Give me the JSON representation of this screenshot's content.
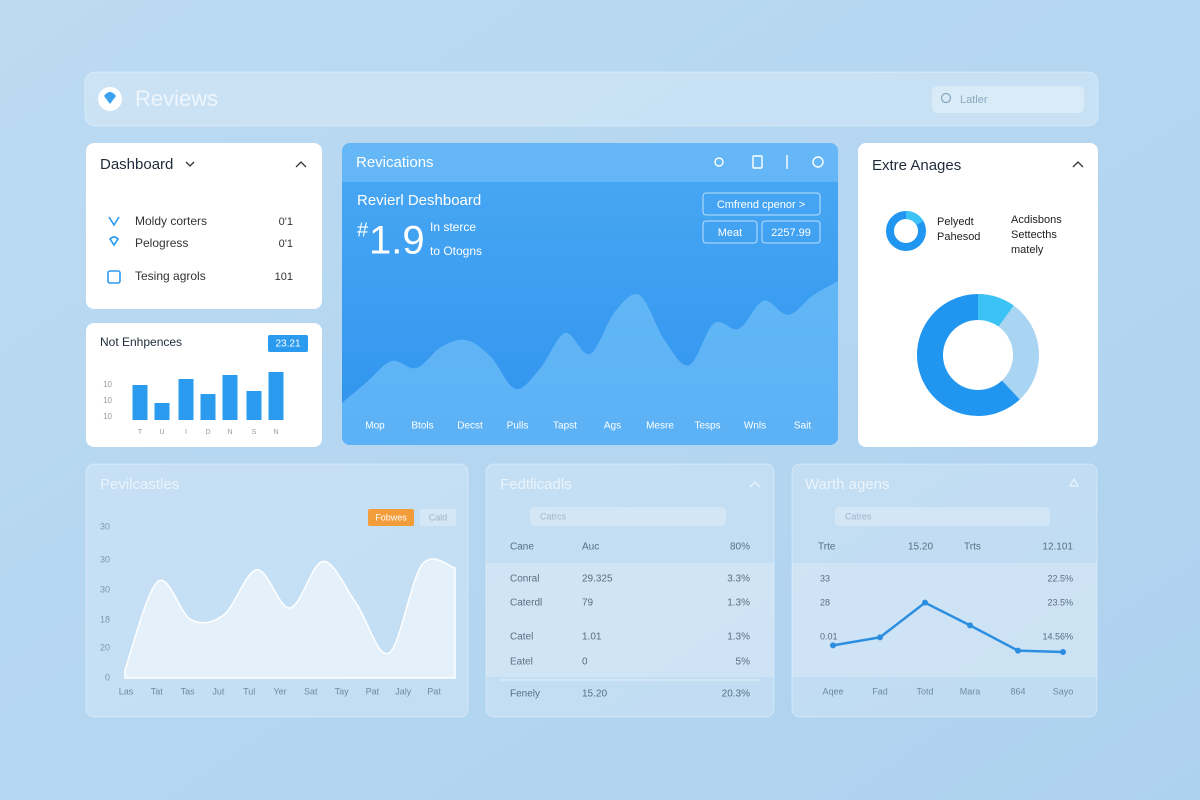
{
  "header": {
    "title": "Reviews",
    "search": "Latler"
  },
  "dashboard": {
    "title": "Dashboard",
    "items": [
      {
        "label": "Moldy corters",
        "value": "0'1"
      },
      {
        "label": "Pelogress",
        "value": "0'1"
      },
      {
        "label": "Tesing agrols",
        "value": "101"
      }
    ]
  },
  "table": {
    "title": "Fedtlicadls",
    "search": "Catrcs",
    "header": [
      "Cane",
      "Auc",
      "80%"
    ],
    "rows": [
      [
        "Conral",
        "29.325",
        "3.3%"
      ],
      [
        "Caterdl",
        "79",
        "1.3%"
      ],
      [
        "Catel",
        "1.01",
        "1.3%"
      ],
      [
        "Eatel",
        "0",
        "5%"
      ],
      [
        "Fenely",
        "15.20",
        "20.3%"
      ]
    ]
  },
  "chart_data": [
    {
      "type": "bar",
      "title": "Not Enhpences",
      "badge": "23.21",
      "categories": [
        "T",
        "U",
        "I",
        "D",
        "N",
        "S",
        "N"
      ],
      "values": [
        35,
        17,
        41,
        26,
        45,
        29,
        48
      ],
      "color": "#2b9bef",
      "ylim": [
        0,
        60
      ],
      "y_labels": [
        "10",
        "10",
        "10"
      ]
    },
    {
      "type": "area",
      "title": "Revications",
      "subtitle": "Revierl Deshboard",
      "metric_prefix": "#",
      "metric": "1.9",
      "metric_notes": [
        "In sterce",
        "to Otogns"
      ],
      "buttons": [
        "Cmfrend cpenor >",
        "Meat",
        "2257.99"
      ],
      "x": [
        0,
        1,
        2,
        3,
        4,
        5,
        6,
        7,
        8,
        9,
        10,
        11,
        12,
        13,
        14,
        15,
        16,
        17,
        18,
        19,
        20
      ],
      "xlim": [
        0,
        20
      ],
      "values": [
        5,
        20,
        35,
        30,
        45,
        50,
        38,
        15,
        30,
        55,
        40,
        70,
        82,
        50,
        32,
        62,
        58,
        78,
        68,
        82,
        92
      ],
      "ylim": [
        0,
        100
      ],
      "color": "#7cc6fa",
      "x_labels": [
        "Mop",
        "Btols",
        "Decst",
        "Pulls",
        "Tapst",
        "Ags",
        "Mesre",
        "Tesps",
        "Wnls",
        "Sait"
      ]
    },
    {
      "type": "donut",
      "title": "Extre Anages",
      "legend": [
        [
          "Pelyedt",
          "Pahesod"
        ],
        [
          "Acdisbons",
          "Settecths",
          "mately"
        ]
      ],
      "values": [
        10,
        28,
        62
      ],
      "colors": [
        "#3cc3f5",
        "#a9d4f2",
        "#2196f0"
      ]
    },
    {
      "type": "area",
      "title": "Pevilcastles",
      "chips": [
        "Fobwes",
        "Cald"
      ],
      "categories": [
        "Las",
        "Tat",
        "Tas",
        "Jut",
        "Tul",
        "Yer",
        "Sat",
        "Tay",
        "Pat",
        "Jaly",
        "Pat"
      ],
      "values": [
        5,
        58,
        35,
        38,
        65,
        42,
        70,
        45,
        15,
        68,
        66
      ],
      "ylim": [
        0,
        90
      ],
      "color": "#ffffff",
      "y_labels": [
        "0",
        "20",
        "18",
        "30",
        "30",
        "30"
      ]
    },
    {
      "type": "line",
      "title": "Warth agens",
      "search": "Catres",
      "header": [
        "Trte",
        "15.20",
        "Trts",
        "12.101"
      ],
      "categories": [
        "Aqee",
        "Fad",
        "Totd",
        "Mara",
        "864",
        "Sayo"
      ],
      "values": [
        11,
        17,
        43,
        26,
        7,
        6
      ],
      "ylim": [
        0,
        60
      ],
      "color": "#2b8ee0",
      "y_labels": [
        "33",
        "28",
        "0.01"
      ],
      "right_labels": [
        "22.5%",
        "23.5%",
        "14.56%"
      ]
    }
  ]
}
